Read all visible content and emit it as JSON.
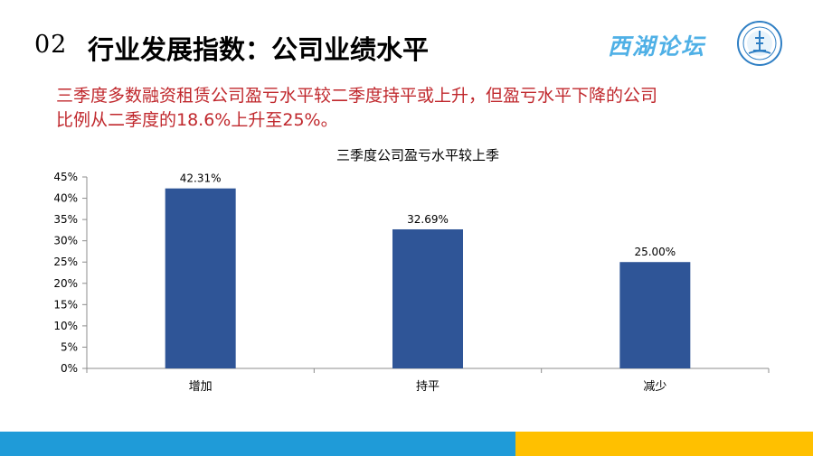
{
  "header": {
    "number": "02",
    "title": "行业发展指数：公司业绩水平",
    "logo_text": "西湖论坛"
  },
  "subtitle": {
    "line1": "三季度多数融资租赁公司盈亏水平较二季度持平或上升，但盈亏水平下降的公司",
    "line2": "比例从二季度的18.6%上升至25%。"
  },
  "colors": {
    "bar": "#2f5597",
    "subtitle": "#c0282d",
    "footer_blue": "#1f9bd8",
    "footer_yellow": "#ffc000",
    "logo": "#4fb0e6"
  },
  "chart_data": {
    "type": "bar",
    "title": "三季度公司盈亏水平较上季",
    "categories": [
      "增加",
      "持平",
      "减少"
    ],
    "values": [
      42.31,
      32.69,
      25.0
    ],
    "data_labels": [
      "42.31%",
      "32.69%",
      "25.00%"
    ],
    "ylim": [
      0,
      45
    ],
    "yticks": [
      0,
      5,
      10,
      15,
      20,
      25,
      30,
      35,
      40,
      45
    ],
    "ytick_labels": [
      "0%",
      "5%",
      "10%",
      "15%",
      "20%",
      "25%",
      "30%",
      "35%",
      "40%",
      "45%"
    ],
    "grid": false,
    "legend": "none"
  }
}
